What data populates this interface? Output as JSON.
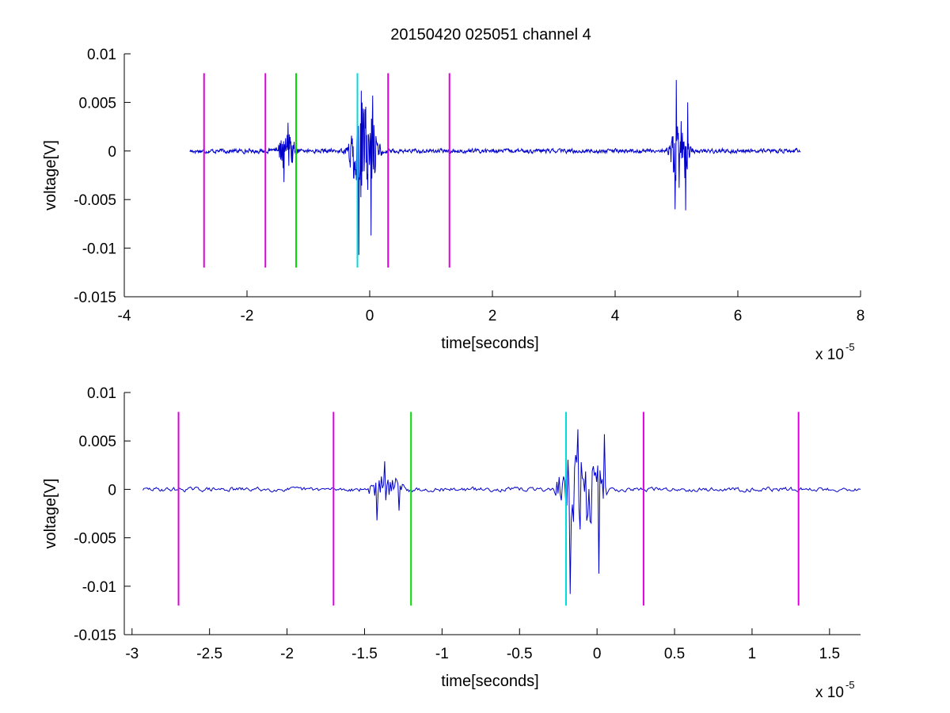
{
  "figure": {
    "title": "20150420 025051 channel 4"
  },
  "chart_data": [
    {
      "type": "line",
      "title": "20150420 025051 channel 4",
      "xlabel": "time[seconds]",
      "ylabel": "voltage[V]",
      "x_multiplier": "x 10",
      "x_exponent": "-5",
      "xlim": [
        -4,
        8
      ],
      "ylim": [
        -0.015,
        0.01
      ],
      "xticks": [
        -4,
        -2,
        0,
        2,
        4,
        6,
        8
      ],
      "xtick_labels": [
        "-4",
        "-2",
        "0",
        "2",
        "4",
        "6",
        "8"
      ],
      "yticks": [
        -0.015,
        -0.01,
        -0.005,
        0,
        0.005,
        0.01
      ],
      "ytick_labels": [
        "-0.015",
        "-0.01",
        "-0.005",
        "0",
        "0.005",
        "0.01"
      ],
      "grid": false,
      "signal": {
        "color": "#0000cc",
        "x_start": -2.93,
        "x_end": 7.02,
        "noise_amplitude": 0.00035,
        "bursts": [
          {
            "center": -1.35,
            "width": 0.25,
            "amplitude": 0.003
          },
          {
            "center": -0.1,
            "width": 0.35,
            "amplitude": 0.009
          },
          {
            "center": 5.05,
            "width": 0.25,
            "amplitude": 0.0065
          }
        ],
        "peaks": [
          {
            "x": -1.4,
            "y": -0.0032
          },
          {
            "x": -1.33,
            "y": 0.0029
          },
          {
            "x": -0.18,
            "y": -0.0107
          },
          {
            "x": -0.14,
            "y": 0.0062
          },
          {
            "x": 0.02,
            "y": -0.0087
          },
          {
            "x": 0.05,
            "y": 0.0057
          },
          {
            "x": 4.98,
            "y": -0.006
          },
          {
            "x": 5.0,
            "y": 0.0073
          },
          {
            "x": 5.15,
            "y": -0.0061
          },
          {
            "x": 5.18,
            "y": 0.005
          }
        ]
      },
      "markers": [
        {
          "x": -2.7,
          "color": "#dd00dd"
        },
        {
          "x": -1.7,
          "color": "#dd00dd"
        },
        {
          "x": -1.2,
          "color": "#00dd00"
        },
        {
          "x": -0.2,
          "color": "#00dddd"
        },
        {
          "x": 0.3,
          "color": "#dd00dd"
        },
        {
          "x": 1.3,
          "color": "#dd00dd"
        }
      ],
      "marker_range": [
        -0.012,
        0.008
      ]
    },
    {
      "type": "line",
      "title": "",
      "xlabel": "time[seconds]",
      "ylabel": "voltage[V]",
      "x_multiplier": "x 10",
      "x_exponent": "-5",
      "xlim": [
        -3.05,
        1.7
      ],
      "ylim": [
        -0.015,
        0.01
      ],
      "xticks": [
        -3,
        -2.5,
        -2,
        -1.5,
        -1,
        -0.5,
        0,
        0.5,
        1,
        1.5
      ],
      "xtick_labels": [
        "-3",
        "-2.5",
        "-2",
        "-1.5",
        "-1",
        "-0.5",
        "0",
        "0.5",
        "1",
        "1.5"
      ],
      "yticks": [
        -0.015,
        -0.01,
        -0.005,
        0,
        0.005,
        0.01
      ],
      "ytick_labels": [
        "-0.015",
        "-0.01",
        "-0.005",
        "0",
        "0.005",
        "0.01"
      ],
      "grid": false,
      "signal": {
        "color": "#0000cc",
        "x_start": -2.93,
        "x_end": 1.7,
        "noise_amplitude": 0.00035,
        "bursts": [
          {
            "center": -1.35,
            "width": 0.18,
            "amplitude": 0.0025
          },
          {
            "center": -0.1,
            "width": 0.22,
            "amplitude": 0.008
          }
        ],
        "peaks": [
          {
            "x": -1.42,
            "y": -0.0032
          },
          {
            "x": -1.37,
            "y": 0.0029
          },
          {
            "x": -1.28,
            "y": -0.0022
          },
          {
            "x": -0.17,
            "y": -0.0108
          },
          {
            "x": -0.12,
            "y": 0.0062
          },
          {
            "x": 0.01,
            "y": -0.0087
          },
          {
            "x": 0.05,
            "y": 0.0057
          }
        ]
      },
      "markers": [
        {
          "x": -2.7,
          "color": "#dd00dd"
        },
        {
          "x": -1.7,
          "color": "#dd00dd"
        },
        {
          "x": -1.2,
          "color": "#00dd00"
        },
        {
          "x": -0.2,
          "color": "#00dddd"
        },
        {
          "x": 0.3,
          "color": "#dd00dd"
        },
        {
          "x": 1.3,
          "color": "#dd00dd"
        }
      ],
      "marker_range": [
        -0.012,
        0.008
      ]
    }
  ]
}
